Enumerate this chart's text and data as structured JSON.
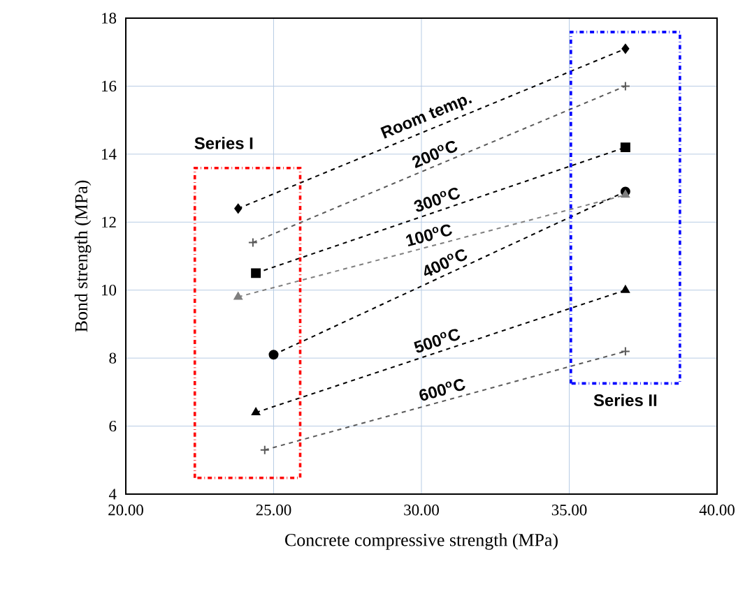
{
  "chart_data": {
    "type": "line",
    "xlabel": "Concrete compressive strength (MPa)",
    "ylabel": "Bond strength (MPa)",
    "xlim": [
      20,
      40
    ],
    "xticks": [
      {
        "value": 20,
        "label": "20.00"
      },
      {
        "value": 25,
        "label": "25.00"
      },
      {
        "value": 30,
        "label": "30.00"
      },
      {
        "value": 35,
        "label": "35.00"
      },
      {
        "value": 40,
        "label": "40.00"
      }
    ],
    "ylim": [
      4,
      18
    ],
    "yticks": [
      4,
      6,
      8,
      10,
      12,
      14,
      16,
      18
    ],
    "grid": true,
    "line_style": "dashed",
    "annotations": [
      "Series I",
      "Series II"
    ],
    "series": [
      {
        "name": "Room temp.",
        "color": "#000000",
        "marker": "diamond",
        "x": [
          23.8,
          36.9
        ],
        "values": [
          12.4,
          17.1
        ]
      },
      {
        "name": "200$^{o}$C",
        "color": "#595959",
        "marker": "cross",
        "x": [
          24.3,
          36.9
        ],
        "values": [
          11.4,
          16.0
        ]
      },
      {
        "name": "300$^{o}$C",
        "color": "#000000",
        "marker": "square",
        "x": [
          24.4,
          36.9
        ],
        "values": [
          10.5,
          14.2
        ]
      },
      {
        "name": "100$^{o}$C",
        "color": "#7f7f7f",
        "marker": "triangle",
        "x": [
          23.8,
          36.9
        ],
        "values": [
          9.8,
          12.8
        ]
      },
      {
        "name": "400$^{o}$C",
        "color": "#000000",
        "marker": "circle",
        "x": [
          25.0,
          36.9
        ],
        "values": [
          8.1,
          12.9
        ]
      },
      {
        "name": "500$^{o}$C",
        "color": "#000000",
        "marker": "triangle",
        "x": [
          24.4,
          36.9
        ],
        "values": [
          6.4,
          10.0
        ]
      },
      {
        "name": "600$^{o}$C",
        "color": "#595959",
        "marker": "cross",
        "x": [
          24.7,
          36.9
        ],
        "values": [
          5.3,
          8.2
        ]
      }
    ]
  }
}
